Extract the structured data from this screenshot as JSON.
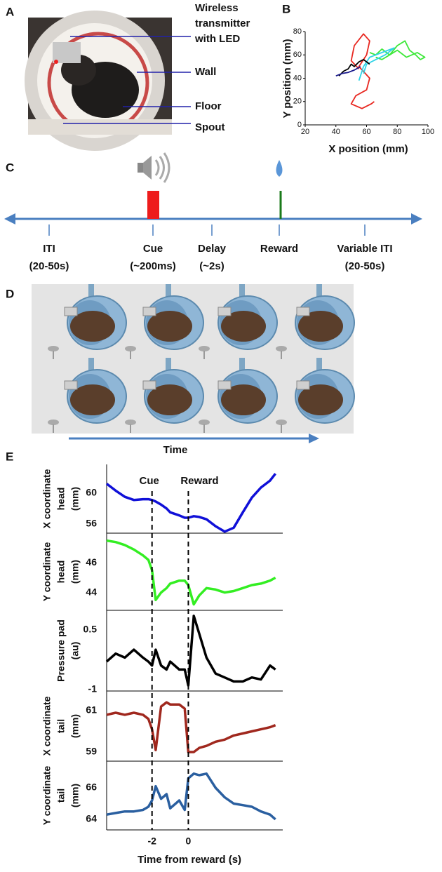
{
  "panels": {
    "A": {
      "label": "A",
      "annotations": [
        [
          "Wireless",
          "transmitter",
          "with LED"
        ],
        [
          "Wall"
        ],
        [
          "Floor"
        ],
        [
          "Spout"
        ]
      ]
    },
    "C": {
      "label": "C",
      "events": [
        [
          "ITI",
          "(20-50s)"
        ],
        [
          "Cue",
          "(~200ms)"
        ],
        [
          "Delay",
          "(~2s)"
        ],
        [
          "Reward"
        ],
        [
          "Variable ITI",
          "(20-50s)"
        ]
      ]
    },
    "D": {
      "label": "D",
      "axis_label": "Time"
    }
  },
  "chart_data": [
    {
      "panel_label": "B",
      "type": "line",
      "xlabel": "X position (mm)",
      "ylabel": "Y position (mm)",
      "xlim": [
        20,
        100
      ],
      "ylim": [
        0,
        80
      ],
      "xticks": [
        20,
        40,
        60,
        80,
        100
      ],
      "yticks": [
        0,
        20,
        40,
        60,
        80
      ],
      "series": [
        {
          "color": "#e8261f",
          "x": [
            55,
            50,
            52,
            58,
            62,
            60,
            55,
            62,
            60,
            53,
            50,
            57,
            63,
            65
          ],
          "values": [
            48,
            55,
            68,
            78,
            72,
            60,
            50,
            40,
            30,
            25,
            18,
            14,
            18,
            20
          ]
        },
        {
          "color": "#3ee83a",
          "x": [
            62,
            66,
            70,
            75,
            80,
            85,
            88,
            92,
            95,
            98,
            93,
            86,
            80,
            75,
            70,
            66
          ],
          "values": [
            62,
            60,
            65,
            60,
            68,
            72,
            64,
            60,
            56,
            58,
            62,
            58,
            64,
            60,
            56,
            58
          ]
        },
        {
          "color": "#2ed3e6",
          "x": [
            55,
            58,
            62,
            66,
            70,
            74,
            78,
            72,
            66,
            60,
            58
          ],
          "values": [
            38,
            50,
            58,
            60,
            62,
            64,
            66,
            60,
            56,
            52,
            44
          ]
        },
        {
          "color": "#000000",
          "x": [
            42,
            45,
            48,
            50,
            52,
            55,
            58,
            62
          ],
          "values": [
            42,
            46,
            48,
            52,
            50,
            54,
            56,
            52
          ]
        },
        {
          "color": "#1a1a8c",
          "x": [
            40,
            44,
            48,
            52,
            56
          ],
          "values": [
            42,
            44,
            45,
            47,
            50
          ]
        }
      ]
    },
    {
      "panel_label": "E",
      "type": "line",
      "xlabel": "Time from reward (s)",
      "x": [
        -4.5,
        -4,
        -3.5,
        -3,
        -2.5,
        -2.2,
        -2,
        -1.8,
        -1.5,
        -1.2,
        -1,
        -0.5,
        -0.2,
        0,
        0.3,
        0.6,
        1,
        1.5,
        2,
        2.5,
        3,
        3.5,
        4,
        4.5,
        4.8
      ],
      "xlim": [
        -4.5,
        5.2
      ],
      "xticks": [
        -2,
        0
      ],
      "annotations": [
        {
          "text": "Cue",
          "x": -2
        },
        {
          "text": "Reward",
          "x": 0
        }
      ],
      "panels": [
        {
          "ylabel": [
            "X coordinate",
            "head",
            "(mm)"
          ],
          "ylim": [
            54.8,
            63.7
          ],
          "yticks": [
            60,
            56
          ],
          "color": "#1010d8",
          "values": [
            61.2,
            60.3,
            59.5,
            59.1,
            59.2,
            59.2,
            59.1,
            58.9,
            58.5,
            58.0,
            57.5,
            57.1,
            56.8,
            56.8,
            57.0,
            56.9,
            56.6,
            55.7,
            55.0,
            55.5,
            57.5,
            59.4,
            60.7,
            61.6,
            62.5
          ]
        },
        {
          "ylabel": [
            "Y coordinate",
            "head",
            "(mm)"
          ],
          "ylim": [
            42.8,
            48.0
          ],
          "yticks": [
            46,
            44
          ],
          "color": "#33ee22",
          "values": [
            47.5,
            47.4,
            47.2,
            46.9,
            46.5,
            46.2,
            45.5,
            43.5,
            44.0,
            44.3,
            44.6,
            44.8,
            44.8,
            44.5,
            43.2,
            43.8,
            44.3,
            44.2,
            44.0,
            44.1,
            44.3,
            44.5,
            44.6,
            44.8,
            45.0
          ]
        },
        {
          "ylabel": [
            "Pressure pad",
            "(au)"
          ],
          "ylim": [
            -1.04,
            0.99
          ],
          "yticks": [
            0.5,
            -1
          ],
          "color": "#000000",
          "values": [
            -0.3,
            -0.1,
            -0.2,
            0.0,
            -0.2,
            -0.3,
            -0.4,
            0.0,
            -0.4,
            -0.5,
            -0.3,
            -0.5,
            -0.5,
            -0.9,
            0.85,
            0.4,
            -0.2,
            -0.6,
            -0.7,
            -0.8,
            -0.8,
            -0.7,
            -0.75,
            -0.4,
            -0.5
          ]
        },
        {
          "ylabel": [
            "X coordinate",
            "tail",
            "(mm)"
          ],
          "ylim": [
            58.56,
            61.95
          ],
          "yticks": [
            61,
            59
          ],
          "color": "#a0281e",
          "values": [
            60.8,
            60.9,
            60.8,
            60.9,
            60.8,
            60.6,
            60.1,
            59.1,
            61.2,
            61.4,
            61.3,
            61.3,
            61.1,
            59.0,
            59.0,
            59.2,
            59.3,
            59.5,
            59.6,
            59.8,
            59.9,
            60.0,
            60.1,
            60.2,
            60.3
          ]
        },
        {
          "ylabel": [
            "Y coordinate",
            "tail",
            "(mm)"
          ],
          "ylim": [
            63.33,
            67.69
          ],
          "yticks": [
            66,
            64
          ],
          "color": "#2a5fa0",
          "values": [
            64.3,
            64.4,
            64.5,
            64.5,
            64.6,
            64.8,
            65.2,
            66.1,
            65.3,
            65.6,
            64.7,
            65.2,
            64.6,
            66.6,
            66.9,
            66.8,
            66.9,
            66.0,
            65.4,
            65.0,
            64.9,
            64.8,
            64.5,
            64.3,
            64.0
          ]
        }
      ]
    }
  ]
}
